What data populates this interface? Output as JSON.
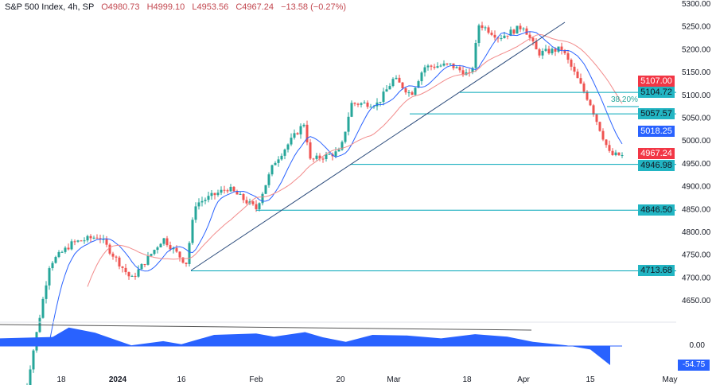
{
  "header": {
    "symbol": "S&P 500 Index, 4h, SP",
    "open": "O4980.73",
    "high": "H4999.10",
    "low": "L4953.56",
    "close": "C4967.24",
    "change": "−13.58 (−0.27%)"
  },
  "chart_data": {
    "type": "candlestick",
    "price_axis": {
      "ticks": [
        5300,
        5250,
        5200,
        5150,
        5100,
        5050,
        5000,
        4950,
        4900,
        4850,
        4800,
        4750,
        4700,
        4650
      ],
      "ylim": [
        4625,
        5305
      ]
    },
    "time_axis": {
      "ticks": [
        "18",
        "2024",
        "16",
        "Feb",
        "20",
        "Mar",
        "18",
        "Apr",
        "15",
        "May"
      ]
    },
    "price_path": [
      {
        "date": "2023-12-11",
        "close": 4630
      },
      {
        "date": "2023-12-14",
        "close": 4730
      },
      {
        "date": "2023-12-21",
        "close": 4775
      },
      {
        "date": "2023-12-28",
        "close": 4790
      },
      {
        "date": "2024-01-05",
        "close": 4695
      },
      {
        "date": "2024-01-12",
        "close": 4785
      },
      {
        "date": "2024-01-17",
        "close": 4730
      },
      {
        "date": "2024-01-19",
        "close": 4860
      },
      {
        "date": "2024-01-26",
        "close": 4895
      },
      {
        "date": "2024-02-01",
        "close": 4850
      },
      {
        "date": "2024-02-05",
        "close": 4950
      },
      {
        "date": "2024-02-12",
        "close": 5040
      },
      {
        "date": "2024-02-13",
        "close": 4955
      },
      {
        "date": "2024-02-20",
        "close": 4975
      },
      {
        "date": "2024-02-22",
        "close": 5080
      },
      {
        "date": "2024-02-27",
        "close": 5080
      },
      {
        "date": "2024-03-01",
        "close": 5135
      },
      {
        "date": "2024-03-05",
        "close": 5100
      },
      {
        "date": "2024-03-08",
        "close": 5160
      },
      {
        "date": "2024-03-14",
        "close": 5165
      },
      {
        "date": "2024-03-19",
        "close": 5140
      },
      {
        "date": "2024-03-21",
        "close": 5255
      },
      {
        "date": "2024-03-26",
        "close": 5225
      },
      {
        "date": "2024-04-01",
        "close": 5250
      },
      {
        "date": "2024-04-04",
        "close": 5190
      },
      {
        "date": "2024-04-09",
        "close": 5200
      },
      {
        "date": "2024-04-15",
        "close": 5080
      },
      {
        "date": "2024-04-16",
        "close": 5050
      },
      {
        "date": "2024-04-19",
        "close": 4967.24
      }
    ],
    "levels": [
      5104.72,
      5057.57,
      4946.98,
      4846.5,
      4713.68
    ],
    "fib_label": "38.20%",
    "moving_average_tags": {
      "slow": "5107.00",
      "fast": "5018.25"
    },
    "last_price": "4967.24",
    "level_labels": [
      "5104.72",
      "5057.57",
      "4946.98",
      "4846.50",
      "4713.68"
    ],
    "oscillator": {
      "zero_label": "0.00",
      "last_label": "-54.75",
      "values": [
        {
          "date": "2023-12-08",
          "v": 22
        },
        {
          "date": "2023-12-15",
          "v": 26
        },
        {
          "date": "2023-12-20",
          "v": 53
        },
        {
          "date": "2023-12-27",
          "v": 38
        },
        {
          "date": "2024-01-05",
          "v": 2
        },
        {
          "date": "2024-01-12",
          "v": 14
        },
        {
          "date": "2024-01-16",
          "v": 5
        },
        {
          "date": "2024-01-23",
          "v": 32
        },
        {
          "date": "2024-02-01",
          "v": 36
        },
        {
          "date": "2024-02-05",
          "v": 27
        },
        {
          "date": "2024-02-12",
          "v": 40
        },
        {
          "date": "2024-02-16",
          "v": 25
        },
        {
          "date": "2024-02-21",
          "v": 12
        },
        {
          "date": "2024-02-26",
          "v": 32
        },
        {
          "date": "2024-03-04",
          "v": 30
        },
        {
          "date": "2024-03-12",
          "v": 22
        },
        {
          "date": "2024-03-20",
          "v": 34
        },
        {
          "date": "2024-03-28",
          "v": 27
        },
        {
          "date": "2024-04-03",
          "v": 12
        },
        {
          "date": "2024-04-10",
          "v": 2
        },
        {
          "date": "2024-04-15",
          "v": -10
        },
        {
          "date": "2024-04-19",
          "v": -54.75
        }
      ]
    },
    "colors": {
      "up": "#26a69a",
      "down": "#ef5350",
      "fast_ma": "#2962ff",
      "slow_ma": "#f28b8b",
      "level": "#00a6b8",
      "trend": "#2a4a7a",
      "oscillator": "#2962ff"
    }
  }
}
